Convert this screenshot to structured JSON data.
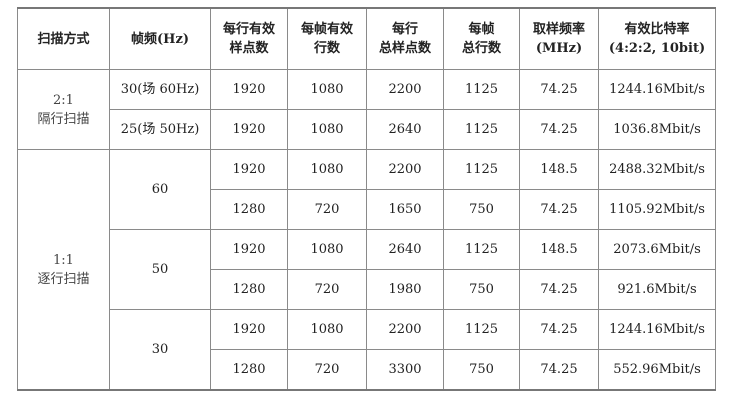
{
  "headers": [
    "扫描方式",
    "帧频(Hz)",
    "每行有效\n样点数",
    "每帧有效\n行数",
    "每行\n总样点数",
    "每帧\n总行数",
    "取样频率\n(MHz)",
    "有效比特率\n(4:2:2, 10bit)"
  ],
  "groups": [
    {
      "scan": "2:1\n隔行扫描",
      "sub": [
        {
          "rate": "30(场 60Hz)",
          "rows": [
            [
              "1920",
              "1080",
              "2200",
              "1125",
              "74.25",
              "1244.16Mbit/s"
            ]
          ]
        },
        {
          "rate": "25(场 50Hz)",
          "rows": [
            [
              "1920",
              "1080",
              "2640",
              "1125",
              "74.25",
              "1036.8Mbit/s"
            ]
          ]
        }
      ]
    },
    {
      "scan": "1:1\n逐行扫描",
      "sub": [
        {
          "rate": "60",
          "rows": [
            [
              "1920",
              "1080",
              "2200",
              "1125",
              "148.5",
              "2488.32Mbit/s"
            ],
            [
              "1280",
              "720",
              "1650",
              "750",
              "74.25",
              "1105.92Mbit/s"
            ]
          ]
        },
        {
          "rate": "50",
          "rows": [
            [
              "1920",
              "1080",
              "2640",
              "1125",
              "148.5",
              "2073.6Mbit/s"
            ],
            [
              "1280",
              "720",
              "1980",
              "750",
              "74.25",
              "921.6Mbit/s"
            ]
          ]
        },
        {
          "rate": "30",
          "rows": [
            [
              "1920",
              "1080",
              "2200",
              "1125",
              "74.25",
              "1244.16Mbit/s"
            ],
            [
              "1280",
              "720",
              "3300",
              "750",
              "74.25",
              "552.96Mbit/s"
            ]
          ]
        }
      ]
    }
  ]
}
